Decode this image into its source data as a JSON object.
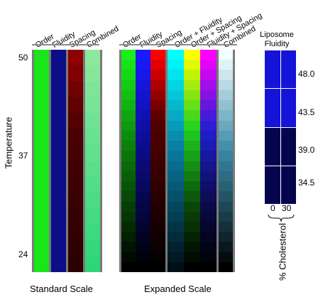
{
  "temperature_axis": {
    "label": "Temperature",
    "ticks": [
      "50",
      "37",
      "24"
    ]
  },
  "standard_scale": {
    "caption": "Standard Scale",
    "columns": [
      "Order",
      "Fluidity",
      "Spacing",
      "Combined"
    ]
  },
  "expanded_scale": {
    "caption": "Expanded Scale",
    "columns": [
      "Order",
      "Fluidity",
      "Spacing",
      "Order + Fluidity",
      "Order + Spacing",
      "Fluidity + Spacing",
      "Combined"
    ]
  },
  "liposome": {
    "title_line1": "Liposome",
    "title_line2": "Fluidity",
    "values": [
      "48.0",
      "43.5",
      "39.0",
      "34.5"
    ],
    "cholesterol_ticks": [
      "0",
      "30"
    ],
    "cholesterol_label": "% Cholesterol"
  },
  "colors": {
    "standard_order": "#19e619",
    "standard_fluidity": "#0d0d88",
    "standard_combined_top": "#8de89e",
    "standard_combined_bottom": "#2ed67a",
    "lipo_high": "#1414d8",
    "lipo_low": "#05054e"
  }
}
